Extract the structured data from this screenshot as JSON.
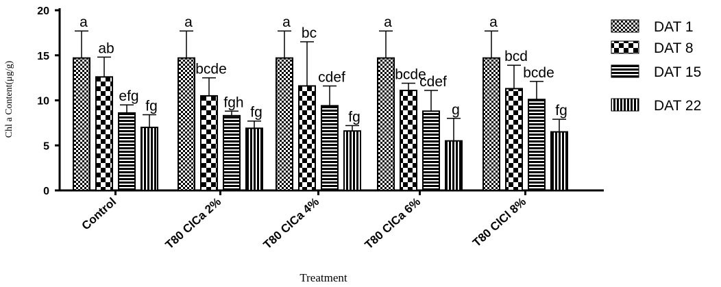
{
  "chart_data": {
    "type": "bar",
    "xlabel": "Treatment",
    "ylabel": "Chl a Content(μg/g)",
    "ylim": [
      0,
      20
    ],
    "yticks": [
      0,
      5,
      10,
      15,
      20
    ],
    "categories": [
      "Control",
      "T80 ClCa 2%",
      "T80 ClCa 4%",
      "T80 ClCa 6%",
      "T80 ClCl 8%"
    ],
    "series": [
      {
        "name": "DAT 1",
        "pattern": "checker-small",
        "values": [
          14.7,
          14.7,
          14.7,
          14.7,
          14.7
        ],
        "errors": [
          3.0,
          3.0,
          3.0,
          3.0,
          3.0
        ],
        "labels": [
          "a",
          "a",
          "a",
          "a",
          "a"
        ]
      },
      {
        "name": "DAT 8",
        "pattern": "checker-large",
        "values": [
          12.6,
          10.5,
          11.6,
          11.1,
          11.3
        ],
        "errors": [
          2.2,
          2.0,
          4.9,
          0.8,
          2.6
        ],
        "labels": [
          "ab",
          "bcde",
          "bc",
          "bcde",
          "bcd"
        ]
      },
      {
        "name": "DAT 15",
        "pattern": "horizontal",
        "values": [
          8.6,
          8.3,
          9.4,
          8.8,
          10.1
        ],
        "errors": [
          0.9,
          0.5,
          2.2,
          2.3,
          2.0
        ],
        "labels": [
          "efg",
          "fgh",
          "cdef",
          "cdef",
          "bcde"
        ]
      },
      {
        "name": "DAT 22",
        "pattern": "vertical",
        "values": [
          7.0,
          6.9,
          6.6,
          5.5,
          6.5
        ],
        "errors": [
          1.4,
          0.8,
          0.6,
          2.5,
          1.4
        ],
        "labels": [
          "fg",
          "fg",
          "fg",
          "g",
          "fg"
        ]
      }
    ],
    "legend_position": "right",
    "grid": false
  }
}
